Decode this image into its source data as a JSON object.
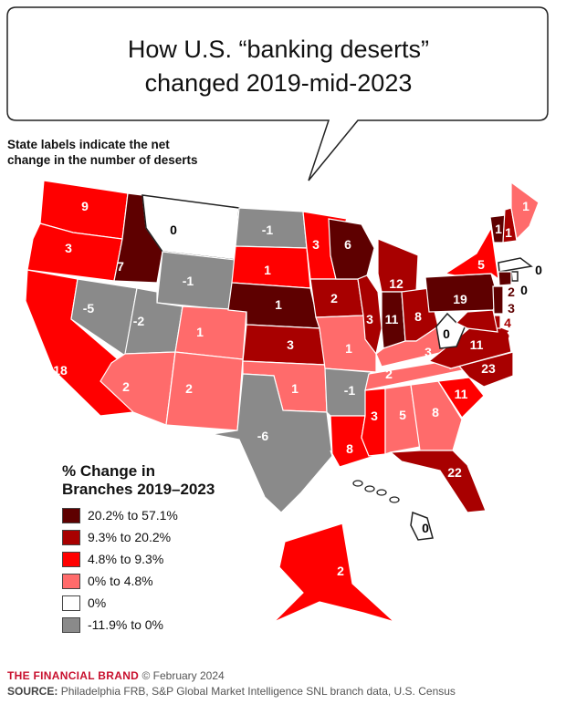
{
  "title_line1": "How U.S. “banking deserts”",
  "title_line2": "changed 2019-mid-2023",
  "subtitle_line1": "State labels indicate the net",
  "subtitle_line2": "change in the number of deserts",
  "chart_data": {
    "type": "choropleth-map",
    "legend_title_line1": "% Change in",
    "legend_title_line2": "Branches 2019–2023",
    "legend_placement": "bottom-left",
    "categories": [
      {
        "key": "c1",
        "label": "20.2% to 57.1%",
        "color": "#5e0000"
      },
      {
        "key": "c2",
        "label": "9.3% to 20.2%",
        "color": "#a80000"
      },
      {
        "key": "c3",
        "label": "4.8% to 9.3%",
        "color": "#ff0000"
      },
      {
        "key": "c4",
        "label": "0% to 4.8%",
        "color": "#ff6b6b"
      },
      {
        "key": "c5",
        "label": "0%",
        "color": "#ffffff"
      },
      {
        "key": "c6",
        "label": "-11.9% to 0%",
        "color": "#8a8a8a"
      }
    ],
    "states": [
      {
        "state": "WA",
        "value": 9,
        "cat": "c3"
      },
      {
        "state": "OR",
        "value": 3,
        "cat": "c3"
      },
      {
        "state": "CA",
        "value": 18,
        "cat": "c3"
      },
      {
        "state": "ID",
        "value": 7,
        "cat": "c1"
      },
      {
        "state": "MT",
        "value": 0,
        "cat": "c5"
      },
      {
        "state": "WY",
        "value": -1,
        "cat": "c6"
      },
      {
        "state": "NV",
        "value": -5,
        "cat": "c6"
      },
      {
        "state": "UT",
        "value": -2,
        "cat": "c6"
      },
      {
        "state": "AZ",
        "value": 2,
        "cat": "c4"
      },
      {
        "state": "CO",
        "value": 1,
        "cat": "c4"
      },
      {
        "state": "NM",
        "value": 2,
        "cat": "c4"
      },
      {
        "state": "ND",
        "value": -1,
        "cat": "c6"
      },
      {
        "state": "SD",
        "value": 1,
        "cat": "c3"
      },
      {
        "state": "NE",
        "value": 1,
        "cat": "c1"
      },
      {
        "state": "KS",
        "value": 3,
        "cat": "c2"
      },
      {
        "state": "OK",
        "value": 1,
        "cat": "c4"
      },
      {
        "state": "TX",
        "value": -6,
        "cat": "c6"
      },
      {
        "state": "MN",
        "value": 3,
        "cat": "c3"
      },
      {
        "state": "IA",
        "value": 2,
        "cat": "c2"
      },
      {
        "state": "MO",
        "value": 1,
        "cat": "c4"
      },
      {
        "state": "AR",
        "value": -1,
        "cat": "c6"
      },
      {
        "state": "LA",
        "value": 8,
        "cat": "c3"
      },
      {
        "state": "WI",
        "value": 6,
        "cat": "c1"
      },
      {
        "state": "IL",
        "value": 3,
        "cat": "c2"
      },
      {
        "state": "MI",
        "value": 12,
        "cat": "c2"
      },
      {
        "state": "IN",
        "value": 11,
        "cat": "c1"
      },
      {
        "state": "OH",
        "value": 8,
        "cat": "c2"
      },
      {
        "state": "KY",
        "value": 3,
        "cat": "c4"
      },
      {
        "state": "TN",
        "value": 2,
        "cat": "c4"
      },
      {
        "state": "MS",
        "value": 3,
        "cat": "c3"
      },
      {
        "state": "AL",
        "value": 5,
        "cat": "c4"
      },
      {
        "state": "GA",
        "value": 8,
        "cat": "c4"
      },
      {
        "state": "FL",
        "value": 22,
        "cat": "c2"
      },
      {
        "state": "SC",
        "value": 11,
        "cat": "c3"
      },
      {
        "state": "NC",
        "value": 23,
        "cat": "c2"
      },
      {
        "state": "VA",
        "value": 11,
        "cat": "c2"
      },
      {
        "state": "WV",
        "value": 0,
        "cat": "c5"
      },
      {
        "state": "PA",
        "value": 19,
        "cat": "c1"
      },
      {
        "state": "NY",
        "value": 5,
        "cat": "c3"
      },
      {
        "state": "VT",
        "value": 1,
        "cat": "c1"
      },
      {
        "state": "NH",
        "value": 1,
        "cat": "c2"
      },
      {
        "state": "ME",
        "value": 1,
        "cat": "c4"
      },
      {
        "state": "MA",
        "value": 0,
        "cat": "c5"
      },
      {
        "state": "RI",
        "value": 0,
        "cat": "c5"
      },
      {
        "state": "CT",
        "value": 2,
        "cat": "c1"
      },
      {
        "state": "NJ",
        "value": 3,
        "cat": "c1"
      },
      {
        "state": "DE",
        "value": 4,
        "cat": "c2"
      },
      {
        "state": "MD",
        "value": 5,
        "cat": "c2"
      },
      {
        "state": "AK",
        "value": 2,
        "cat": "c3"
      },
      {
        "state": "HI",
        "value": 0,
        "cat": "c5"
      }
    ]
  },
  "footer": {
    "brand": "THE FINANCIAL BRAND",
    "date": "© February 2024",
    "source_label": "SOURCE:",
    "source_text": "Philadelphia FRB, S&P Global Market Intelligence SNL branch data, U.S. Census"
  }
}
